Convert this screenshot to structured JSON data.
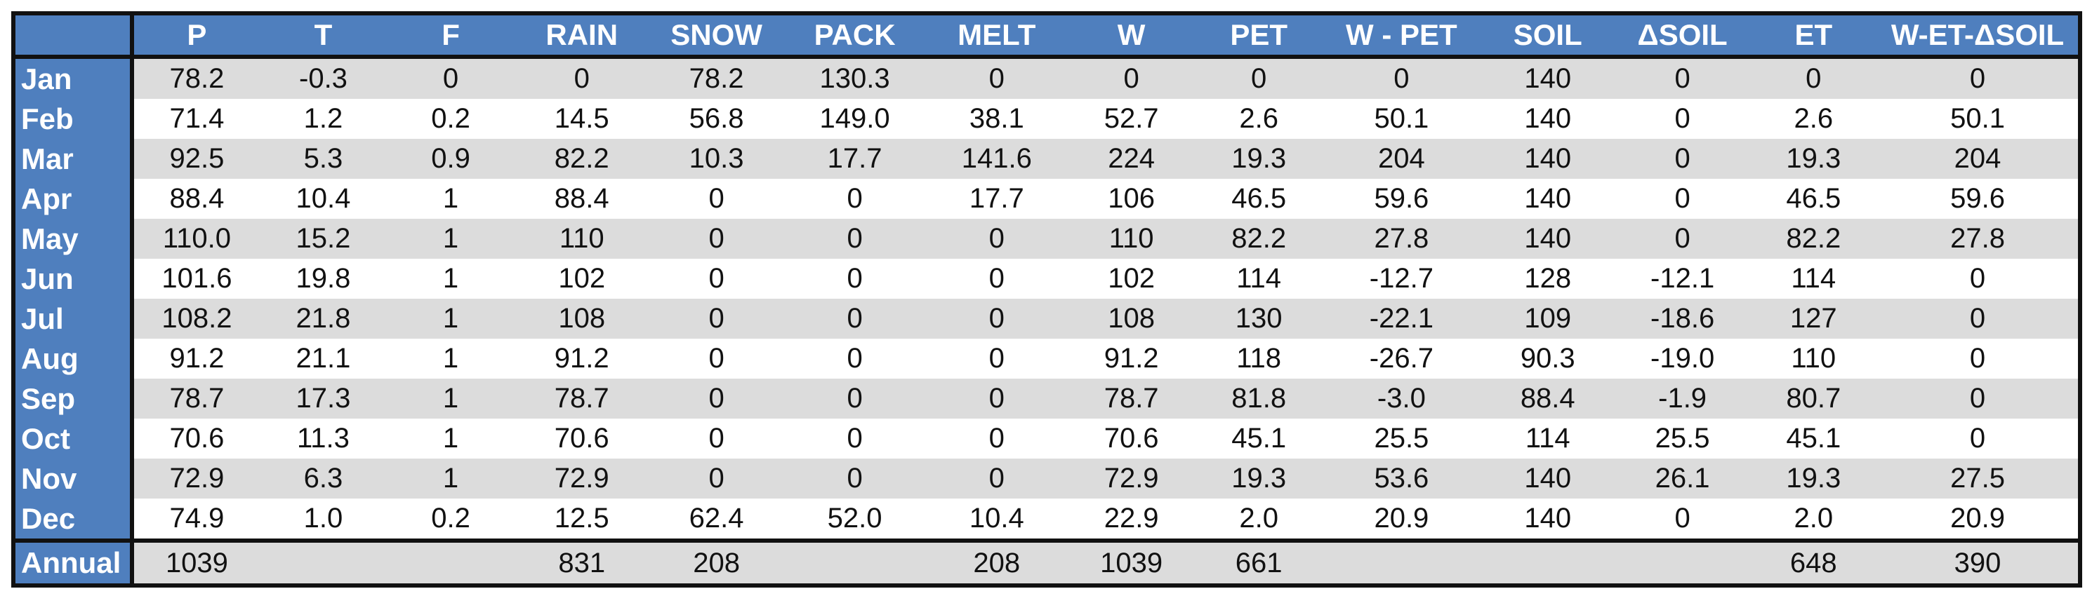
{
  "table": {
    "corner": "",
    "columns": [
      "P",
      "T",
      "F",
      "RAIN",
      "SNOW",
      "PACK",
      "MELT",
      "W",
      "PET",
      "W - PET",
      "SOIL",
      "ΔSOIL",
      "ET",
      "W-ET-ΔSOIL"
    ],
    "rows": [
      {
        "label": "Jan",
        "values": [
          "78.2",
          "-0.3",
          "0",
          "0",
          "78.2",
          "130.3",
          "0",
          "0",
          "0",
          "0",
          "140",
          "0",
          "0",
          "0"
        ]
      },
      {
        "label": "Feb",
        "values": [
          "71.4",
          "1.2",
          "0.2",
          "14.5",
          "56.8",
          "149.0",
          "38.1",
          "52.7",
          "2.6",
          "50.1",
          "140",
          "0",
          "2.6",
          "50.1"
        ]
      },
      {
        "label": "Mar",
        "values": [
          "92.5",
          "5.3",
          "0.9",
          "82.2",
          "10.3",
          "17.7",
          "141.6",
          "224",
          "19.3",
          "204",
          "140",
          "0",
          "19.3",
          "204"
        ]
      },
      {
        "label": "Apr",
        "values": [
          "88.4",
          "10.4",
          "1",
          "88.4",
          "0",
          "0",
          "17.7",
          "106",
          "46.5",
          "59.6",
          "140",
          "0",
          "46.5",
          "59.6"
        ]
      },
      {
        "label": "May",
        "values": [
          "110.0",
          "15.2",
          "1",
          "110",
          "0",
          "0",
          "0",
          "110",
          "82.2",
          "27.8",
          "140",
          "0",
          "82.2",
          "27.8"
        ]
      },
      {
        "label": "Jun",
        "values": [
          "101.6",
          "19.8",
          "1",
          "102",
          "0",
          "0",
          "0",
          "102",
          "114",
          "-12.7",
          "128",
          "-12.1",
          "114",
          "0"
        ]
      },
      {
        "label": "Jul",
        "values": [
          "108.2",
          "21.8",
          "1",
          "108",
          "0",
          "0",
          "0",
          "108",
          "130",
          "-22.1",
          "109",
          "-18.6",
          "127",
          "0"
        ]
      },
      {
        "label": "Aug",
        "values": [
          "91.2",
          "21.1",
          "1",
          "91.2",
          "0",
          "0",
          "0",
          "91.2",
          "118",
          "-26.7",
          "90.3",
          "-19.0",
          "110",
          "0"
        ]
      },
      {
        "label": "Sep",
        "values": [
          "78.7",
          "17.3",
          "1",
          "78.7",
          "0",
          "0",
          "0",
          "78.7",
          "81.8",
          "-3.0",
          "88.4",
          "-1.9",
          "80.7",
          "0"
        ]
      },
      {
        "label": "Oct",
        "values": [
          "70.6",
          "11.3",
          "1",
          "70.6",
          "0",
          "0",
          "0",
          "70.6",
          "45.1",
          "25.5",
          "114",
          "25.5",
          "45.1",
          "0"
        ]
      },
      {
        "label": "Nov",
        "values": [
          "72.9",
          "6.3",
          "1",
          "72.9",
          "0",
          "0",
          "0",
          "72.9",
          "19.3",
          "53.6",
          "140",
          "26.1",
          "19.3",
          "27.5"
        ]
      },
      {
        "label": "Dec",
        "values": [
          "74.9",
          "1.0",
          "0.2",
          "12.5",
          "62.4",
          "52.0",
          "10.4",
          "22.9",
          "2.0",
          "20.9",
          "140",
          "0",
          "2.0",
          "20.9"
        ]
      }
    ],
    "footer": {
      "label": "Annual",
      "values": [
        "1039",
        "",
        "",
        "831",
        "208",
        "",
        "208",
        "1039",
        "661",
        "",
        "",
        "",
        "648",
        "390"
      ]
    }
  },
  "colors": {
    "header_bg": "#4f7fbe",
    "header_text": "#ffffff",
    "row_shade": "#dcdcdc",
    "row_plain": "#ffffff",
    "border": "#111111"
  }
}
